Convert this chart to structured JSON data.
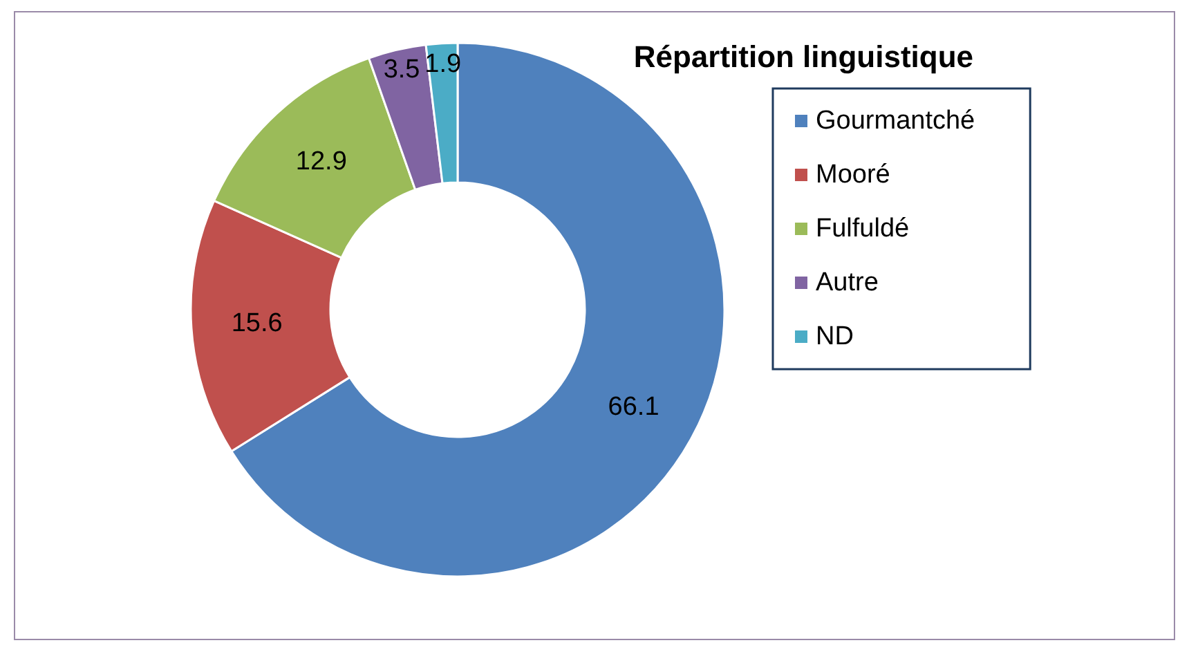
{
  "chart_data": {
    "type": "donut",
    "title": "Répartition linguistique",
    "categories": [
      "Gourmantché",
      "Mooré",
      "Fulfuldé",
      "Autre",
      "ND"
    ],
    "values": [
      66.1,
      15.6,
      12.9,
      3.5,
      1.9
    ],
    "colors": [
      "#4f81bd",
      "#c0504d",
      "#9bbb59",
      "#8064a2",
      "#4bacc6"
    ],
    "data_labels": true,
    "legend": "right"
  }
}
